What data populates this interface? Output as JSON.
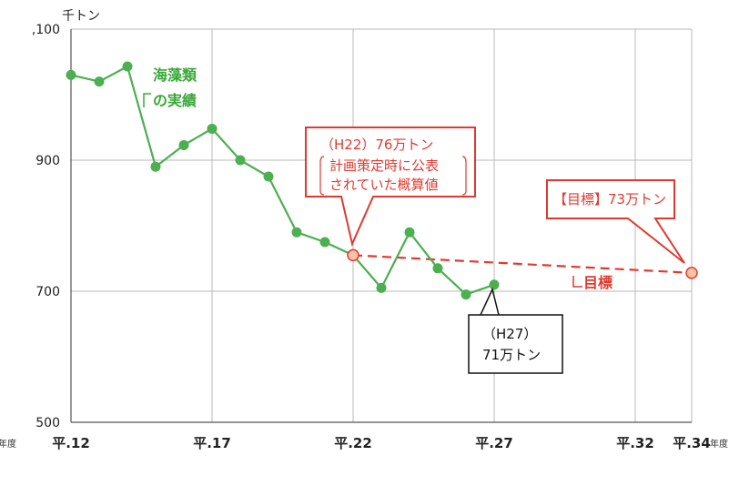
{
  "chart_data": {
    "type": "line",
    "y_unit": "千トン",
    "x_unit": "年度",
    "ylim": [
      500,
      1100
    ],
    "y_ticks": [
      ",100",
      "900",
      "700",
      "500"
    ],
    "x_ticks": [
      "平.12",
      "平.17",
      "平.22",
      "平.27",
      "平.32",
      "平.34"
    ],
    "grid": true,
    "series": [
      {
        "name": "海藻類の実績",
        "color": "#4caf50",
        "x": [
          12,
          13,
          14,
          15,
          16,
          17,
          18,
          19,
          20,
          21,
          22,
          23,
          24,
          25,
          26,
          27
        ],
        "y": [
          1030,
          1020,
          1043,
          890,
          923,
          948,
          900,
          875,
          790,
          775,
          755,
          705,
          790,
          735,
          695,
          710
        ]
      },
      {
        "name": "目標",
        "color": "#e03a2f",
        "style": "dashed",
        "x": [
          22,
          34
        ],
        "y": [
          755,
          728
        ]
      }
    ],
    "annotations": {
      "h22_line1": "（H22）76万トン",
      "h22_line2": "計画策定時に公表",
      "h22_line3": "されていた概算値",
      "target_box": "【目標】73万トン",
      "h27_line1": "（H27）",
      "h27_line2": "71万トン",
      "series_label_line1": "海藻類",
      "series_label_line2": "の実績",
      "target_line_label": "目標"
    }
  }
}
